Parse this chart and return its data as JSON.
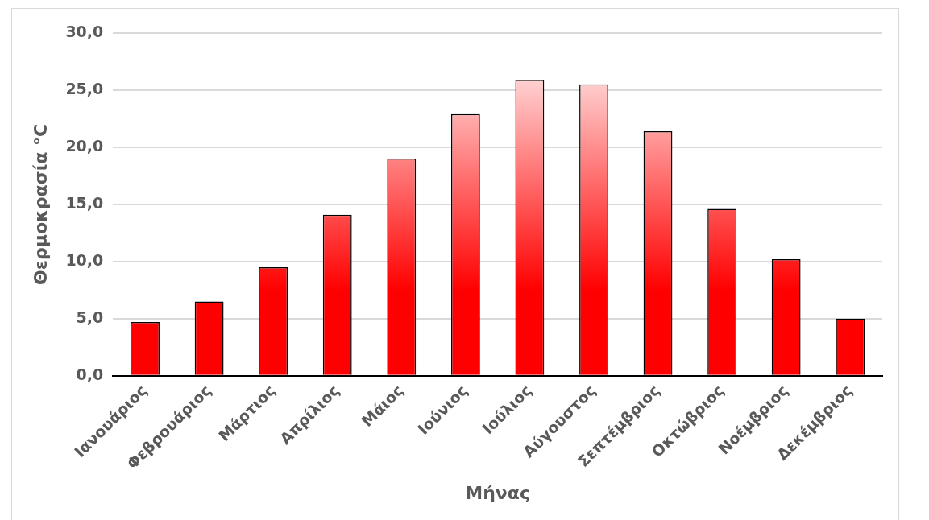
{
  "chart_data": {
    "type": "bar",
    "xlabel": "Μήνας",
    "ylabel": "Θερμοκρασία °C",
    "categories": [
      "Ιανουάριος",
      "Φεβρουάριος",
      "Μάρτιος",
      "Απρίλιος",
      "Μάιος",
      "Ιούνιος",
      "Ιούλιος",
      "Αύγουστος",
      "Σεπτέμβριος",
      "Οκτώβριος",
      "Νοέμβριος",
      "Δεκέμβριος"
    ],
    "values": [
      4.7,
      6.5,
      9.5,
      14.1,
      19.0,
      22.9,
      25.9,
      25.5,
      21.4,
      14.6,
      10.2,
      5.0
    ],
    "color": "#ff0000",
    "ylim": [
      0,
      30
    ],
    "yticks": [
      {
        "value": 0,
        "label": "0,0"
      },
      {
        "value": 5,
        "label": "5,0"
      },
      {
        "value": 10,
        "label": "10,0"
      },
      {
        "value": 15,
        "label": "15,0"
      },
      {
        "value": 20,
        "label": "20,0"
      },
      {
        "value": 25,
        "label": "25,0"
      },
      {
        "value": 30,
        "label": "30,0"
      }
    ],
    "grid": "y"
  }
}
